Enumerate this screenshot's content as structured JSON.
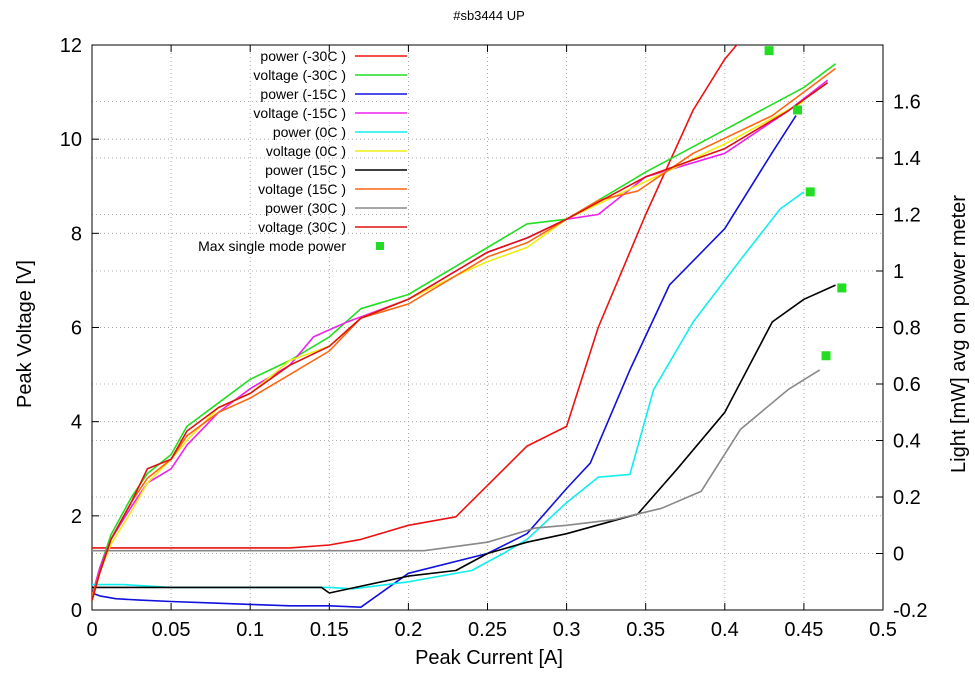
{
  "chart_data": {
    "type": "line",
    "title": "#sb3444 UP",
    "xlabel": "Peak Current [A]",
    "ylabel": "Peak Voltage [V]",
    "y2label": "Light [mW] avg on power meter",
    "xlim": [
      0,
      0.5
    ],
    "ylim": [
      0,
      12
    ],
    "y2lim": [
      -0.2,
      1.8
    ],
    "x_ticks": [
      "0",
      "0.05",
      "0.1",
      "0.15",
      "0.2",
      "0.25",
      "0.3",
      "0.35",
      "0.4",
      "0.45",
      "0.5"
    ],
    "y_ticks": [
      "0",
      "2",
      "4",
      "6",
      "8",
      "10",
      "12"
    ],
    "y2_ticks": [
      "-0.2",
      "0",
      "0.2",
      "0.4",
      "0.6",
      "0.8",
      "1",
      "1.2",
      "1.4",
      "1.6"
    ],
    "grid": true,
    "legend_position": "top-left",
    "series": [
      {
        "name": "power (-30C )",
        "axis": "y2",
        "color": "#ee1111",
        "x": [
          0.0,
          0.01,
          0.05,
          0.1,
          0.125,
          0.15,
          0.17,
          0.2,
          0.23,
          0.275,
          0.3,
          0.32,
          0.35,
          0.38,
          0.4,
          0.43
        ],
        "y": [
          0.02,
          0.02,
          0.02,
          0.02,
          0.02,
          0.03,
          0.05,
          0.1,
          0.13,
          0.38,
          0.45,
          0.8,
          1.2,
          1.57,
          1.75,
          1.95
        ]
      },
      {
        "name": "voltage (-30C )",
        "axis": "y",
        "color": "#22dd22",
        "x": [
          0.0,
          0.005,
          0.012,
          0.025,
          0.035,
          0.05,
          0.06,
          0.08,
          0.1,
          0.125,
          0.15,
          0.17,
          0.2,
          0.25,
          0.275,
          0.3,
          0.35,
          0.4,
          0.45,
          0.47
        ],
        "y": [
          0.3,
          0.9,
          1.6,
          2.4,
          2.9,
          3.3,
          3.9,
          4.4,
          4.9,
          5.3,
          5.8,
          6.4,
          6.7,
          7.7,
          8.2,
          8.3,
          9.3,
          10.2,
          11.1,
          11.6
        ]
      },
      {
        "name": "power (-15C )",
        "axis": "y2",
        "color": "#1111dd",
        "x": [
          0.0,
          0.005,
          0.015,
          0.03,
          0.05,
          0.075,
          0.1,
          0.125,
          0.15,
          0.17,
          0.2,
          0.25,
          0.275,
          0.3,
          0.315,
          0.34,
          0.365,
          0.4,
          0.43,
          0.445
        ],
        "y": [
          -0.14,
          -0.15,
          -0.16,
          -0.165,
          -0.17,
          -0.175,
          -0.18,
          -0.185,
          -0.185,
          -0.19,
          -0.07,
          0.0,
          0.07,
          0.23,
          0.32,
          0.65,
          0.95,
          1.15,
          1.42,
          1.55
        ]
      },
      {
        "name": "voltage (-15C )",
        "axis": "y",
        "color": "#ee22ee",
        "x": [
          0.0,
          0.005,
          0.012,
          0.025,
          0.035,
          0.05,
          0.06,
          0.08,
          0.1,
          0.125,
          0.14,
          0.16,
          0.2,
          0.23,
          0.25,
          0.275,
          0.3,
          0.32,
          0.35,
          0.4,
          0.44,
          0.465
        ],
        "y": [
          0.3,
          0.9,
          1.5,
          2.2,
          2.7,
          3.0,
          3.5,
          4.2,
          4.7,
          5.2,
          5.8,
          6.1,
          6.6,
          7.2,
          7.6,
          7.9,
          8.3,
          8.4,
          9.2,
          9.7,
          10.6,
          11.25
        ]
      },
      {
        "name": "power (0C )",
        "axis": "y2",
        "color": "#11eeee",
        "x": [
          0.0,
          0.005,
          0.02,
          0.05,
          0.1,
          0.15,
          0.165,
          0.2,
          0.24,
          0.26,
          0.275,
          0.3,
          0.32,
          0.34,
          0.355,
          0.38,
          0.41,
          0.435,
          0.45
        ],
        "y": [
          -0.11,
          -0.11,
          -0.11,
          -0.12,
          -0.12,
          -0.12,
          -0.125,
          -0.1,
          -0.06,
          0.0,
          0.05,
          0.18,
          0.27,
          0.28,
          0.58,
          0.82,
          1.04,
          1.22,
          1.28
        ]
      },
      {
        "name": "voltage (0C )",
        "axis": "y",
        "color": "#eeee11",
        "x": [
          0.0,
          0.005,
          0.012,
          0.025,
          0.035,
          0.05,
          0.06,
          0.08,
          0.1,
          0.125,
          0.15,
          0.17,
          0.2,
          0.23,
          0.25,
          0.275,
          0.3,
          0.35,
          0.4,
          0.45
        ],
        "y": [
          0.2,
          0.8,
          1.4,
          2.1,
          2.7,
          3.2,
          3.6,
          4.3,
          4.6,
          5.3,
          5.6,
          6.2,
          6.6,
          7.1,
          7.4,
          7.7,
          8.3,
          9.1,
          9.9,
          10.8
        ]
      },
      {
        "name": "power (15C )",
        "axis": "y2",
        "color": "#000000",
        "x": [
          0.0,
          0.01,
          0.02,
          0.05,
          0.075,
          0.1,
          0.125,
          0.145,
          0.15,
          0.2,
          0.23,
          0.25,
          0.275,
          0.3,
          0.345,
          0.37,
          0.4,
          0.43,
          0.45,
          0.47
        ],
        "y": [
          -0.12,
          -0.12,
          -0.12,
          -0.12,
          -0.12,
          -0.12,
          -0.12,
          -0.12,
          -0.14,
          -0.08,
          -0.06,
          0.0,
          0.04,
          0.07,
          0.14,
          0.3,
          0.5,
          0.82,
          0.9,
          0.95
        ]
      },
      {
        "name": "voltage (15C )",
        "axis": "y",
        "color": "#ff6611",
        "x": [
          0.0,
          0.005,
          0.012,
          0.025,
          0.035,
          0.05,
          0.06,
          0.08,
          0.1,
          0.125,
          0.15,
          0.17,
          0.2,
          0.23,
          0.25,
          0.275,
          0.3,
          0.32,
          0.345,
          0.38,
          0.43,
          0.47
        ],
        "y": [
          0.3,
          0.8,
          1.5,
          2.3,
          2.8,
          3.2,
          3.7,
          4.2,
          4.5,
          5.0,
          5.5,
          6.2,
          6.5,
          7.1,
          7.5,
          7.8,
          8.3,
          8.7,
          8.9,
          9.7,
          10.5,
          11.5
        ]
      },
      {
        "name": "power (30C )",
        "axis": "y2",
        "color": "#888888",
        "x": [
          0.0,
          0.05,
          0.1,
          0.15,
          0.2,
          0.21,
          0.25,
          0.28,
          0.3,
          0.33,
          0.36,
          0.385,
          0.41,
          0.44,
          0.46
        ],
        "y": [
          0.01,
          0.01,
          0.01,
          0.01,
          0.01,
          0.01,
          0.04,
          0.09,
          0.1,
          0.12,
          0.16,
          0.22,
          0.44,
          0.58,
          0.65
        ]
      },
      {
        "name": "voltage (30C )",
        "axis": "y",
        "color": "#dd1111",
        "x": [
          0.0,
          0.005,
          0.012,
          0.025,
          0.035,
          0.05,
          0.06,
          0.08,
          0.1,
          0.125,
          0.15,
          0.17,
          0.2,
          0.23,
          0.25,
          0.275,
          0.3,
          0.35,
          0.4,
          0.44,
          0.465
        ],
        "y": [
          0.2,
          0.8,
          1.5,
          2.3,
          3.0,
          3.2,
          3.8,
          4.3,
          4.6,
          5.2,
          5.6,
          6.2,
          6.6,
          7.2,
          7.6,
          7.9,
          8.3,
          9.2,
          9.8,
          10.6,
          11.2
        ]
      },
      {
        "name": "Max single mode power",
        "axis": "y2",
        "color": "#22dd22",
        "marker": "square",
        "x": [
          0.428,
          0.446,
          0.454,
          0.474,
          0.464
        ],
        "y": [
          1.78,
          1.57,
          1.28,
          0.94,
          0.7
        ]
      }
    ]
  }
}
